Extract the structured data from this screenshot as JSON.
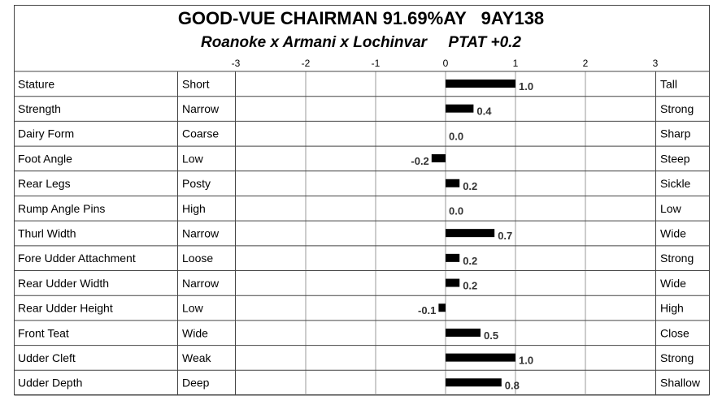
{
  "chart_data": {
    "type": "bar",
    "title": "GOOD-VUE CHAIRMAN 91.69%AY   9AY138",
    "subtitle": "Roanoke x Armani x Lochinvar     PTAT +0.2",
    "categories": [
      "Stature",
      "Strength",
      "Dairy Form",
      "Foot Angle",
      "Rear Legs",
      "Rump Angle Pins",
      "Thurl Width",
      "Fore Udder Attachment",
      "Rear Udder Width",
      "Rear Udder Height",
      "Front Teat",
      "Udder Cleft",
      "Udder Depth"
    ],
    "low_labels": [
      "Short",
      "Narrow",
      "Coarse",
      "Low",
      "Posty",
      "High",
      "Narrow",
      "Loose",
      "Narrow",
      "Low",
      "Wide",
      "Weak",
      "Deep"
    ],
    "high_labels": [
      "Tall",
      "Strong",
      "Sharp",
      "Steep",
      "Sickle",
      "Low",
      "Wide",
      "Strong",
      "Wide",
      "High",
      "Close",
      "Strong",
      "Shallow"
    ],
    "values": [
      1,
      0.4,
      0,
      -0.2,
      0.2,
      0,
      0.7,
      0.2,
      0.2,
      -0.1,
      0.5,
      1,
      0.8
    ],
    "value_labels": [
      "1.0",
      "0.4",
      "0.0",
      "-0.2",
      "0.2",
      "0.0",
      "0.7",
      "0.2",
      "0.2",
      "-0.1",
      "0.5",
      "1.0",
      "0.8"
    ],
    "color": "#000000",
    "xlim": [
      -3,
      3
    ],
    "xticks": [
      -3,
      -2,
      -1,
      0,
      1,
      2,
      3
    ],
    "grid": true
  }
}
